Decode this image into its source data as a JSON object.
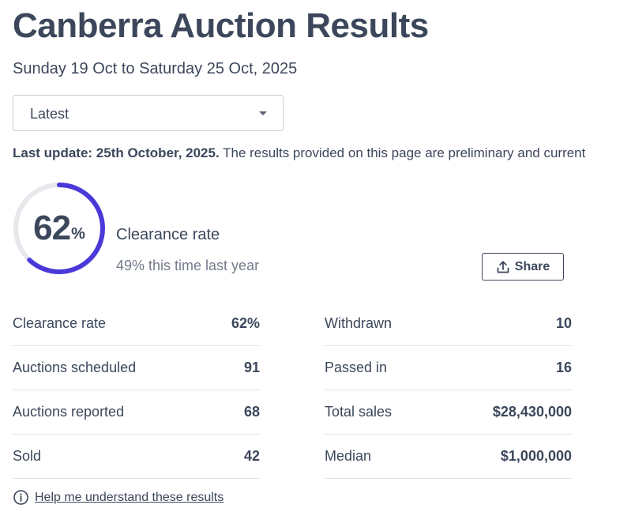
{
  "header": {
    "title": "Canberra Auction Results",
    "date_range": "Sunday 19 Oct to Saturday 25 Oct, 2025"
  },
  "period_select": {
    "selected": "Latest"
  },
  "update": {
    "bold": "Last update: 25th October, 2025.",
    "text": " The results provided on this page are preliminary and current"
  },
  "clearance": {
    "rate_value": "62",
    "rate_fraction": 0.62,
    "percent_sign": "%",
    "label": "Clearance rate",
    "last_year": "49% this time last year"
  },
  "share": {
    "label": "Share",
    "icon": "share-upload-icon"
  },
  "stats_left": [
    {
      "label": "Clearance rate",
      "value": "62%"
    },
    {
      "label": "Auctions scheduled",
      "value": "91"
    },
    {
      "label": "Auctions reported",
      "value": "68"
    },
    {
      "label": "Sold",
      "value": "42"
    }
  ],
  "stats_right": [
    {
      "label": "Withdrawn",
      "value": "10"
    },
    {
      "label": "Passed in",
      "value": "16"
    },
    {
      "label": "Total sales",
      "value": "$28,430,000"
    },
    {
      "label": "Median",
      "value": "$1,000,000"
    }
  ],
  "help": {
    "label": "Help me understand these results",
    "icon": "info-icon"
  },
  "colors": {
    "ring_progress": "#4a39d8",
    "ring_track": "#e6e8ec",
    "text": "#3c475b",
    "muted": "#737b8a"
  }
}
